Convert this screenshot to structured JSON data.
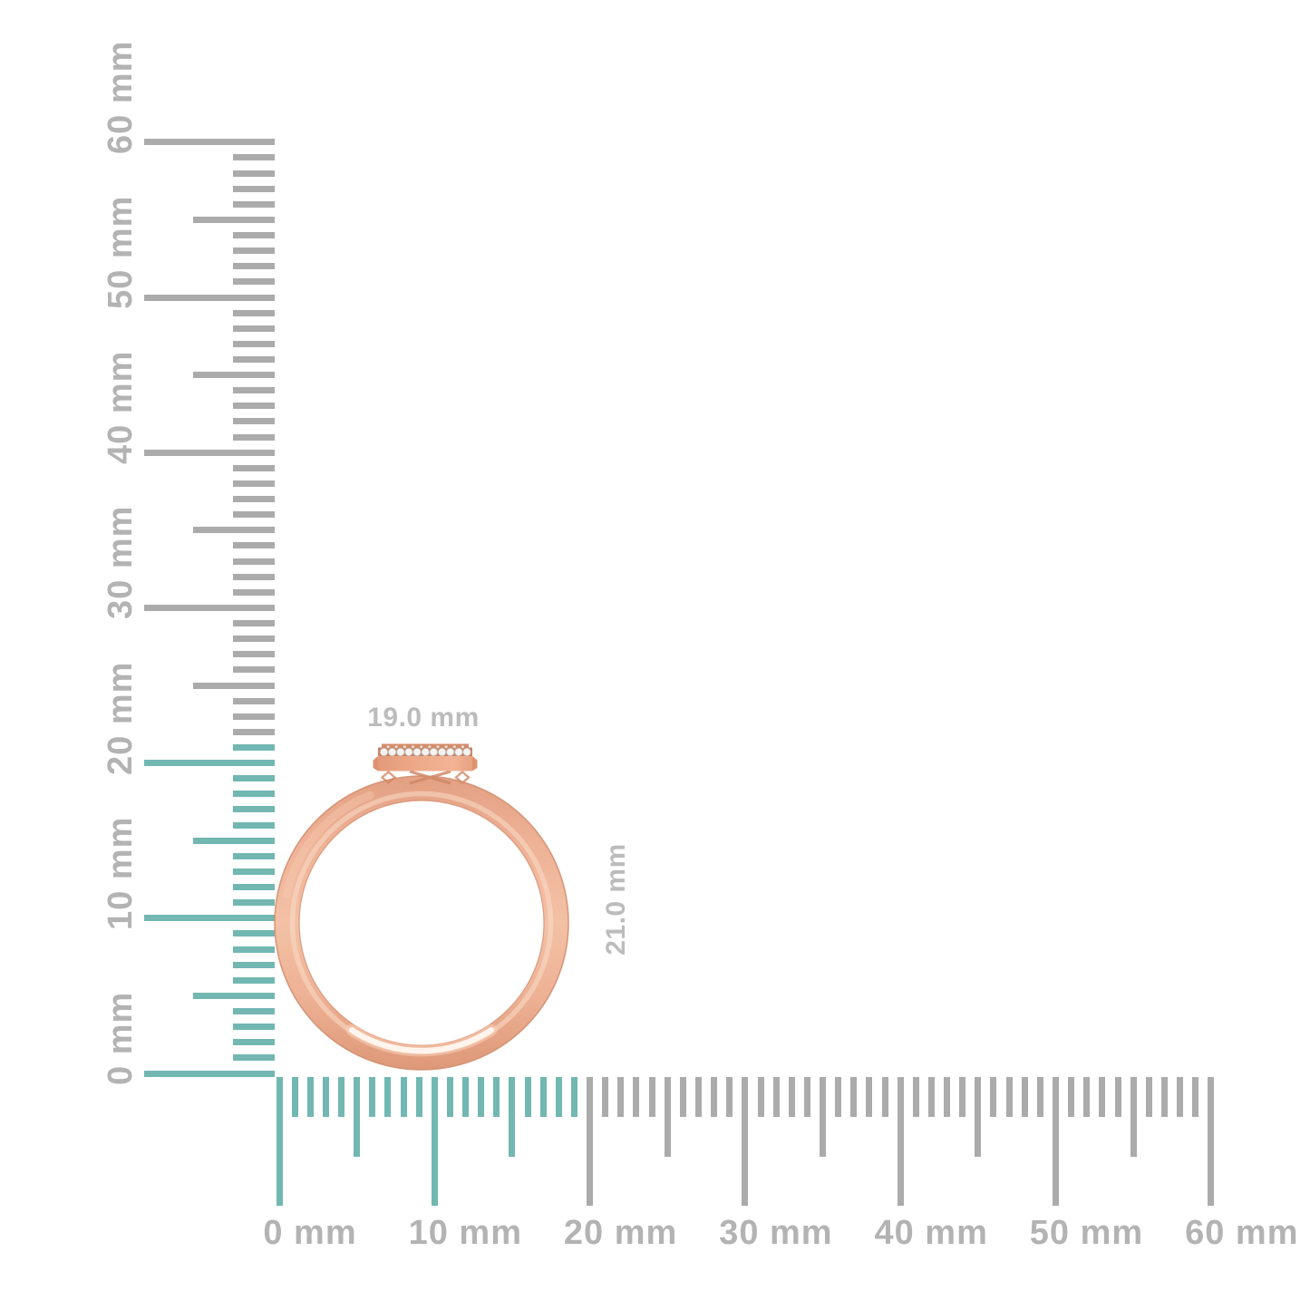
{
  "page": {
    "background": "#ffffff"
  },
  "product": {
    "width_label": "19.0 mm",
    "height_label": "21.0 mm",
    "width_mm": 19.0,
    "height_mm": 21.0,
    "stone_count": 11
  },
  "rulers": {
    "unit": "mm",
    "vertical": {
      "labels": [
        "0 mm",
        "10 mm",
        "20 mm",
        "30 mm",
        "40 mm",
        "50 mm",
        "60 mm"
      ],
      "major_values": [
        0,
        10,
        20,
        30,
        40,
        50,
        60
      ],
      "max_mm": 60,
      "minor_step_mm": 1,
      "highlight_extent_mm": 21
    },
    "horizontal": {
      "labels": [
        "0 mm",
        "10 mm",
        "20 mm",
        "30 mm",
        "40 mm",
        "50 mm",
        "60 mm"
      ],
      "major_values": [
        0,
        10,
        20,
        30,
        40,
        50,
        60
      ],
      "max_mm": 60,
      "minor_step_mm": 1,
      "highlight_extent_mm": 19
    }
  },
  "colors": {
    "tick_gray": "#ababab",
    "tick_highlight": "#72b7b2",
    "ruler_label": "#b3b3b3",
    "dimension_label": "#bcbcbc",
    "gold_dark": "#dd9878",
    "gold_mid": "#eeb195",
    "gold_light": "#f3c1a6",
    "gold_highlight": "#fff7f0",
    "gold_edge": "#d18c6c",
    "diamond": "#f4f3f2"
  }
}
